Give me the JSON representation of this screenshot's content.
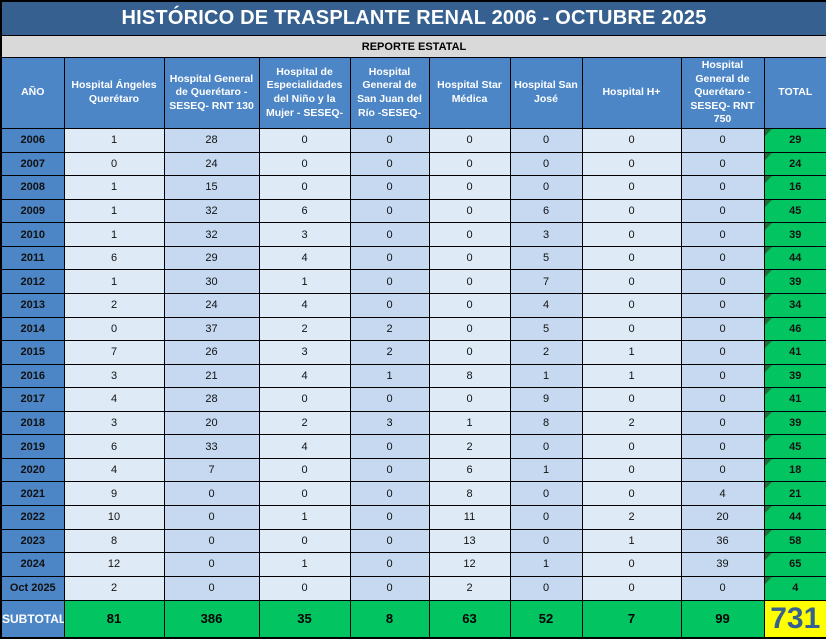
{
  "title": "HISTÓRICO DE TRASPLANTE RENAL 2006 - OCTUBRE 2025",
  "subtitle": "REPORTE ESTATAL",
  "columns": [
    "AÑO",
    "Hospital Ángeles Querétaro",
    "Hospital General de Querétaro - SESEQ- RNT 130",
    "Hospital de Especialidades del Niño y la Mujer - SESEQ-",
    "Hospital General de San Juan del Río -SESEQ-",
    "Hospital Star Médica",
    "Hospital San José",
    "Hospital H+",
    "Hospital General de Querétaro - SESEQ- RNT 750",
    "TOTAL"
  ],
  "rows": [
    {
      "year": "2006",
      "values": [
        1,
        28,
        0,
        0,
        0,
        0,
        0,
        0
      ],
      "total": 29
    },
    {
      "year": "2007",
      "values": [
        0,
        24,
        0,
        0,
        0,
        0,
        0,
        0
      ],
      "total": 24
    },
    {
      "year": "2008",
      "values": [
        1,
        15,
        0,
        0,
        0,
        0,
        0,
        0
      ],
      "total": 16
    },
    {
      "year": "2009",
      "values": [
        1,
        32,
        6,
        0,
        0,
        6,
        0,
        0
      ],
      "total": 45
    },
    {
      "year": "2010",
      "values": [
        1,
        32,
        3,
        0,
        0,
        3,
        0,
        0
      ],
      "total": 39
    },
    {
      "year": "2011",
      "values": [
        6,
        29,
        4,
        0,
        0,
        5,
        0,
        0
      ],
      "total": 44
    },
    {
      "year": "2012",
      "values": [
        1,
        30,
        1,
        0,
        0,
        7,
        0,
        0
      ],
      "total": 39
    },
    {
      "year": "2013",
      "values": [
        2,
        24,
        4,
        0,
        0,
        4,
        0,
        0
      ],
      "total": 34
    },
    {
      "year": "2014",
      "values": [
        0,
        37,
        2,
        2,
        0,
        5,
        0,
        0
      ],
      "total": 46
    },
    {
      "year": "2015",
      "values": [
        7,
        26,
        3,
        2,
        0,
        2,
        1,
        0
      ],
      "total": 41
    },
    {
      "year": "2016",
      "values": [
        3,
        21,
        4,
        1,
        8,
        1,
        1,
        0
      ],
      "total": 39
    },
    {
      "year": "2017",
      "values": [
        4,
        28,
        0,
        0,
        0,
        9,
        0,
        0
      ],
      "total": 41
    },
    {
      "year": "2018",
      "values": [
        3,
        20,
        2,
        3,
        1,
        8,
        2,
        0
      ],
      "total": 39
    },
    {
      "year": "2019",
      "values": [
        6,
        33,
        4,
        0,
        2,
        0,
        0,
        0
      ],
      "total": 45
    },
    {
      "year": "2020",
      "values": [
        4,
        7,
        0,
        0,
        6,
        1,
        0,
        0
      ],
      "total": 18
    },
    {
      "year": "2021",
      "values": [
        9,
        0,
        0,
        0,
        8,
        0,
        0,
        4
      ],
      "total": 21
    },
    {
      "year": "2022",
      "values": [
        10,
        0,
        1,
        0,
        11,
        0,
        2,
        20
      ],
      "total": 44
    },
    {
      "year": "2023",
      "values": [
        8,
        0,
        0,
        0,
        13,
        0,
        1,
        36
      ],
      "total": 58
    },
    {
      "year": "2024",
      "values": [
        12,
        0,
        1,
        0,
        12,
        1,
        0,
        39
      ],
      "total": 65
    },
    {
      "year": "Oct 2025",
      "values": [
        2,
        0,
        0,
        0,
        2,
        0,
        0,
        0
      ],
      "total": 4
    }
  ],
  "subtotal": {
    "label": "SUBTOTAL",
    "values": [
      81,
      386,
      35,
      8,
      63,
      52,
      7,
      99
    ],
    "grand_total": 731
  },
  "colors": {
    "title_bar": "#35608F",
    "subtitle_bar": "#D9D9D9",
    "header_blue": "#4C86C6",
    "col_light": "#DEEBF7",
    "col_dark": "#C6D9F1",
    "total_green": "#02C562",
    "grand_total_yellow": "#FFFF00",
    "grand_total_text": "#35608F"
  }
}
